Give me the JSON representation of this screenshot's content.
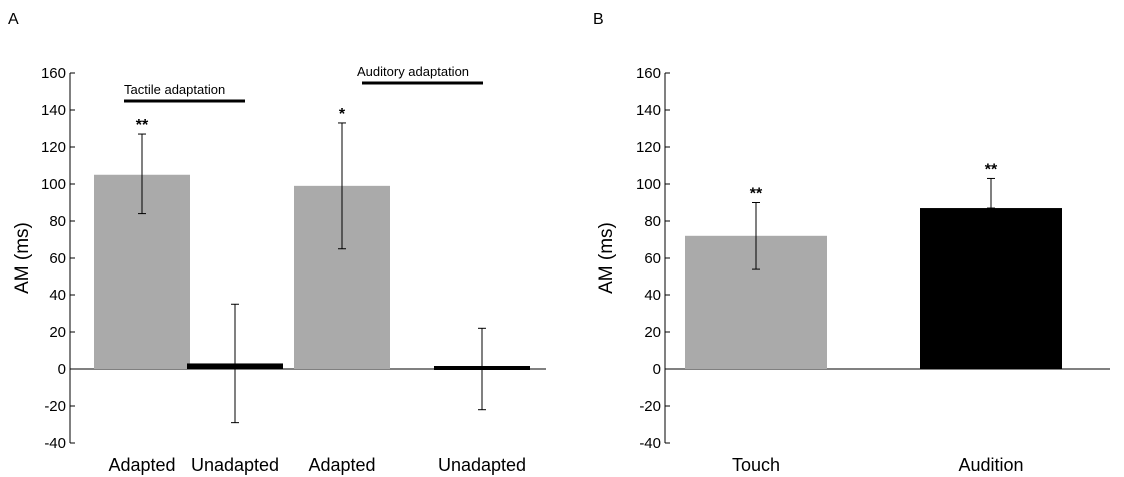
{
  "chart_data": [
    {
      "panel_label": "A",
      "type": "bar",
      "categories": [
        "Adapted",
        "Unadapted",
        "Adapted",
        "Unadapted"
      ],
      "values": [
        105,
        3,
        99,
        0
      ],
      "error_low": [
        84,
        -29,
        65,
        -22
      ],
      "error_high": [
        127,
        35,
        133,
        22
      ],
      "colors": [
        "#aaaaaa",
        "#000000",
        "#aaaaaa",
        "#000000"
      ],
      "significance": [
        "**",
        "",
        "*",
        ""
      ],
      "ylabel": "AM (ms)",
      "ylim": [
        -40,
        160
      ],
      "yticks": [
        -40,
        -20,
        0,
        20,
        40,
        60,
        80,
        100,
        120,
        140,
        160
      ],
      "grid": false,
      "annotations": [
        {
          "text": "Tactile adaptation",
          "categories": [
            0,
            1
          ]
        },
        {
          "text": "Auditory adaptation",
          "categories": [
            2,
            3
          ]
        }
      ]
    },
    {
      "panel_label": "B",
      "type": "bar",
      "categories": [
        "Touch",
        "Audition"
      ],
      "values": [
        72,
        87
      ],
      "error_low": [
        54,
        87
      ],
      "error_high": [
        90,
        103
      ],
      "colors": [
        "#aaaaaa",
        "#000000"
      ],
      "significance": [
        "**",
        "**"
      ],
      "ylabel": "AM (ms)",
      "ylim": [
        -40,
        160
      ],
      "yticks": [
        -40,
        -20,
        0,
        20,
        40,
        60,
        80,
        100,
        120,
        140,
        160
      ],
      "grid": false,
      "annotations": []
    }
  ]
}
